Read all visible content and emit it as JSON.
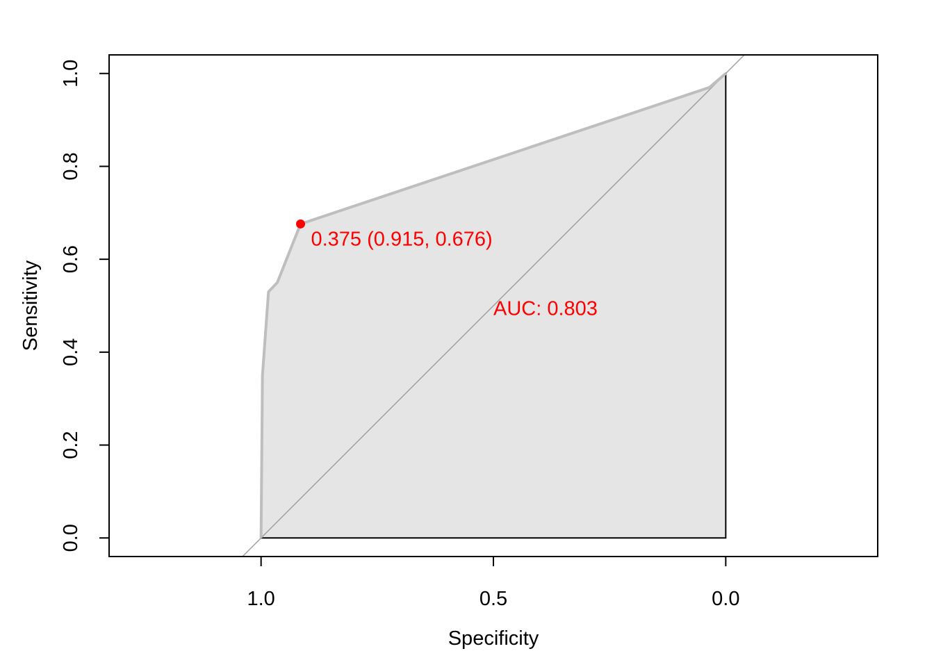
{
  "chart_data": {
    "type": "line",
    "title": "",
    "xlabel": "Specificity",
    "ylabel": "Sensitivity",
    "x_reversed": true,
    "xlim": [
      1.327,
      -0.327
    ],
    "ylim": [
      -0.04,
      1.04
    ],
    "x_ticks": [
      1.0,
      0.5,
      0.0
    ],
    "x_tick_labels": [
      "1.0",
      "0.5",
      "0.0"
    ],
    "y_ticks": [
      0.0,
      0.2,
      0.4,
      0.6,
      0.8,
      1.0
    ],
    "y_tick_labels": [
      "0.0",
      "0.2",
      "0.4",
      "0.6",
      "0.8",
      "1.0"
    ],
    "grid": false,
    "legend": "none",
    "auc_polygon": true,
    "series": [
      {
        "specificity": [
          1.0,
          0.997,
          0.984,
          0.965,
          0.915,
          0.035,
          0.0
        ],
        "sensitivity": [
          0.0,
          0.35,
          0.53,
          0.55,
          0.676,
          0.97,
          1.0
        ]
      }
    ],
    "best_threshold": {
      "specificity": 0.915,
      "sensitivity": 0.676,
      "label": "0.375 (0.915, 0.676)"
    },
    "auc_label": "AUC: 0.803",
    "auc_label_position": [
      0.5,
      0.48
    ],
    "colors": {
      "curve": "#bebebe",
      "auc_fill": "#e5e5e5",
      "diagonal": "#a0a0a0",
      "highlight": "#ff0000",
      "axis": "#000000"
    }
  }
}
